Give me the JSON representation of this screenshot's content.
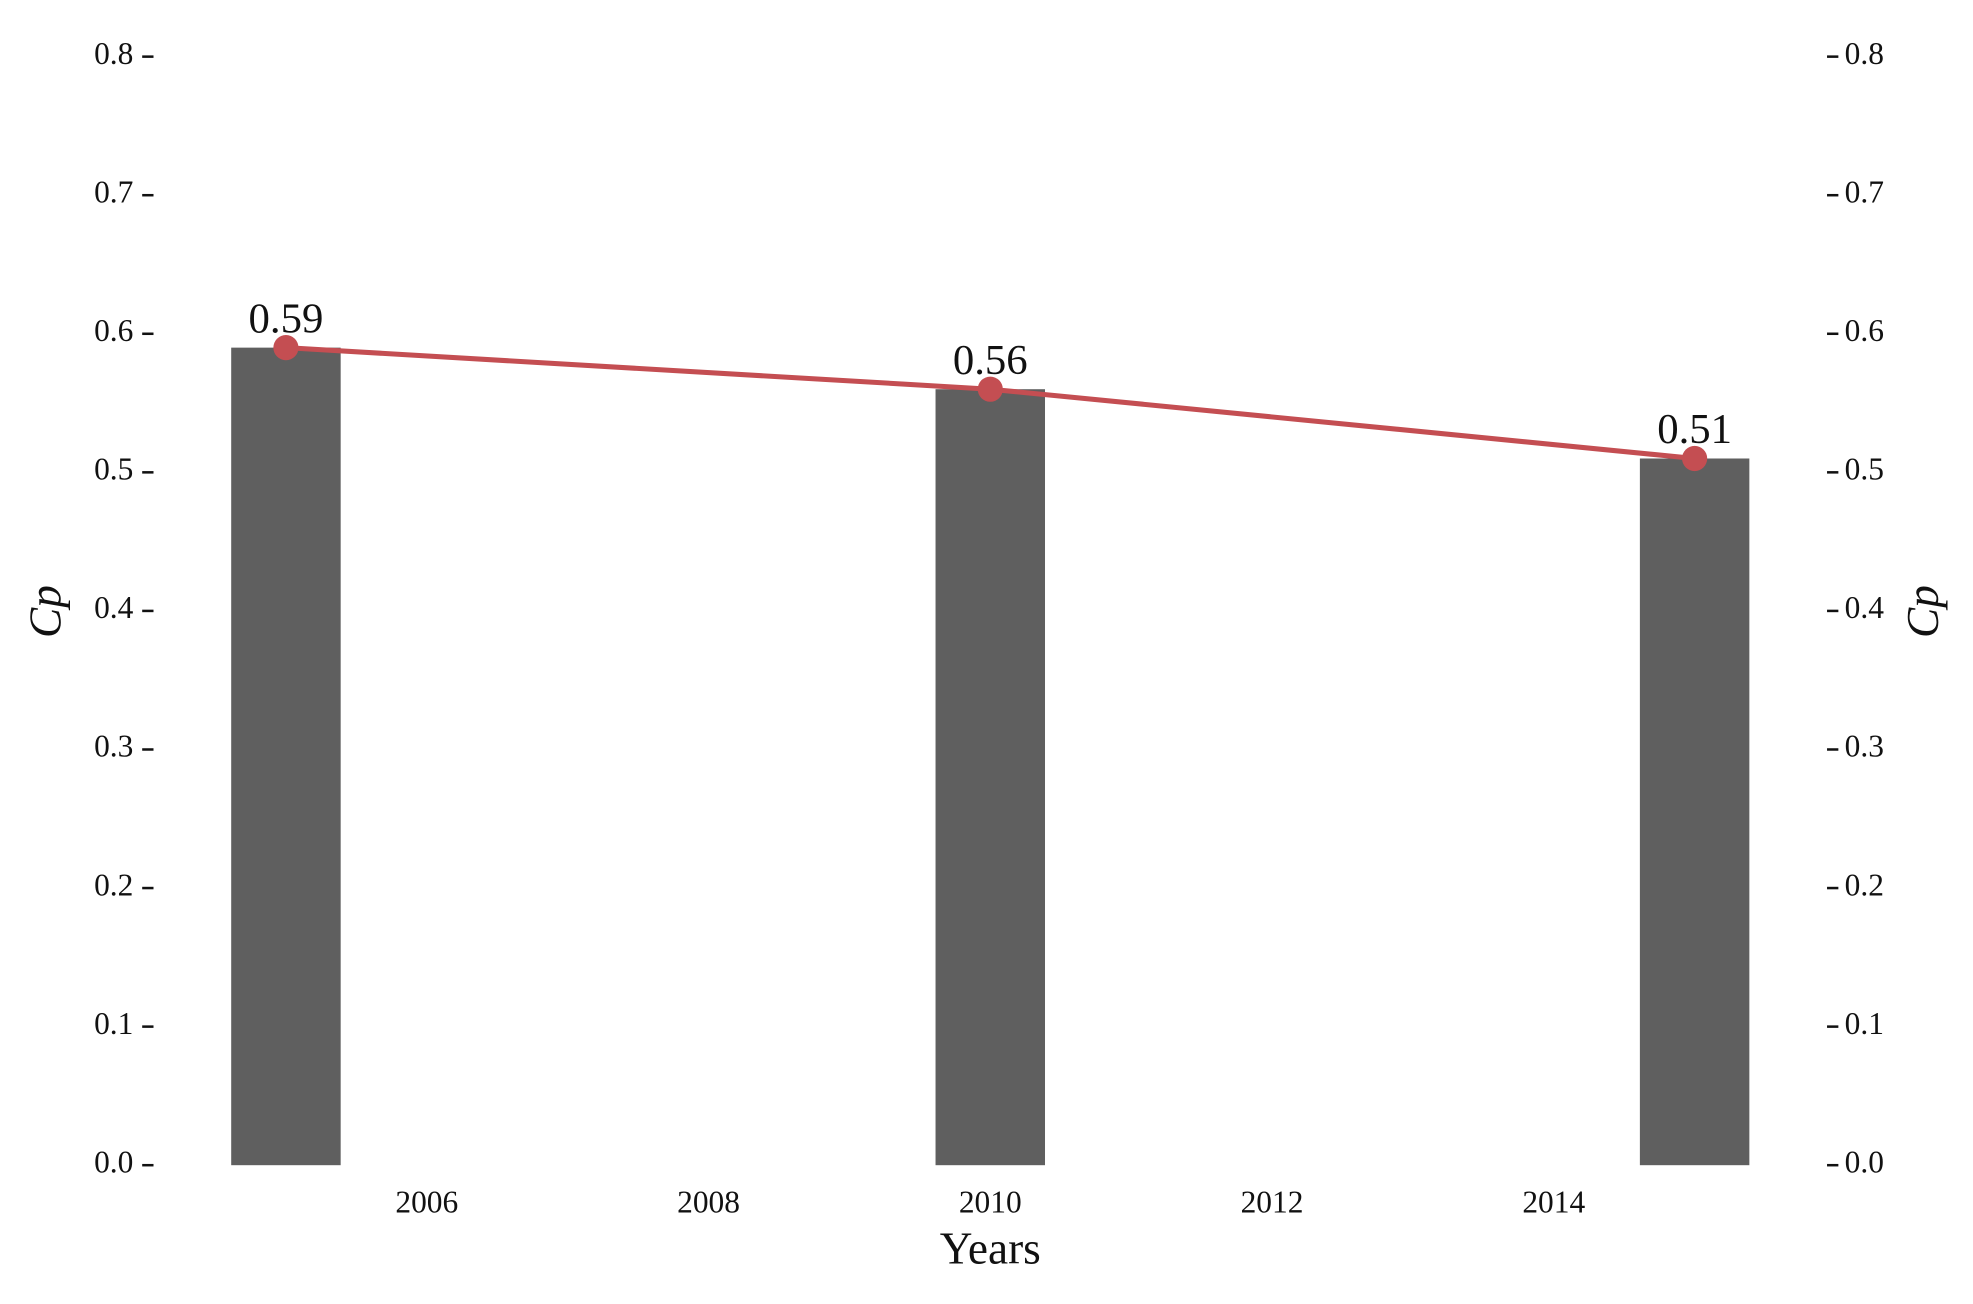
{
  "chart_data": {
    "type": "bar-line",
    "x_label": "Years",
    "y_label": "Cp",
    "y2_label": "Cp",
    "x": [
      2005,
      2010,
      2015
    ],
    "series": [
      {
        "type": "bar",
        "color": "#5f5f5f",
        "values": [
          0.59,
          0.56,
          0.51
        ]
      },
      {
        "type": "line",
        "color": "#c44e52",
        "values": [
          0.59,
          0.56,
          0.51
        ],
        "axis": "y2"
      }
    ],
    "xlim": [
      2004.06,
      2015.94
    ],
    "xticks": [
      2006,
      2008,
      2010,
      2012,
      2014
    ],
    "ylim": [
      0,
      0.8
    ],
    "yticks": [
      {
        "value": 0,
        "label": "0.0"
      },
      0.1,
      0.2,
      0.3,
      0.4,
      0.5,
      0.6,
      0.7,
      0.8
    ],
    "y2lim": [
      0,
      0.8
    ],
    "y2ticks": [
      {
        "value": 0,
        "label": "0.0"
      },
      0.1,
      0.2,
      0.3,
      0.4,
      0.5,
      0.6,
      0.7,
      0.8
    ],
    "grid": false
  }
}
